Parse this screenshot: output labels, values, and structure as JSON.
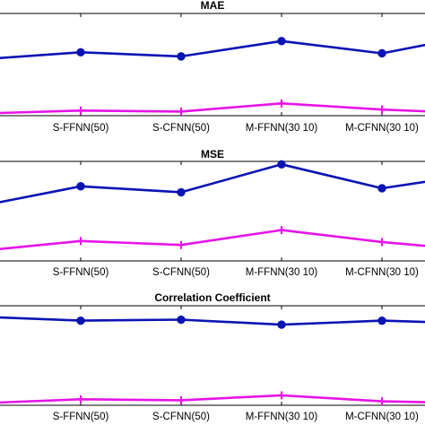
{
  "chart_data": [
    {
      "type": "line",
      "title": "MAE",
      "categories": [
        "",
        "S-FFNN(50)",
        "S-CFNN(50)",
        "M-FFNN(30 10)",
        "M-CFNN(30 10)",
        ""
      ],
      "ylim": [
        0,
        1
      ],
      "series": [
        {
          "color": "#0a14b4",
          "marker": "circle",
          "values": [
            0.55,
            0.62,
            0.58,
            0.73,
            0.61,
            0.8
          ]
        },
        {
          "color": "#e614e6",
          "marker": "plus",
          "values": [
            0.02,
            0.05,
            0.04,
            0.12,
            0.06,
            0.02
          ]
        }
      ]
    },
    {
      "type": "line",
      "title": "MSE",
      "categories": [
        "",
        "S-FFNN(50)",
        "S-CFNN(50)",
        "M-FFNN(30 10)",
        "M-CFNN(30 10)",
        ""
      ],
      "ylim": [
        0,
        1
      ],
      "series": [
        {
          "color": "#0a14b4",
          "marker": "circle",
          "values": [
            0.55,
            0.75,
            0.69,
            0.97,
            0.73,
            0.88
          ]
        },
        {
          "color": "#e614e6",
          "marker": "plus",
          "values": [
            0.1,
            0.2,
            0.16,
            0.31,
            0.19,
            0.1
          ]
        }
      ]
    },
    {
      "type": "line",
      "title": "Correlation Coefficient",
      "categories": [
        "",
        "S-FFNN(50)",
        "S-CFNN(50)",
        "M-FFNN(30 10)",
        "M-CFNN(30 10)",
        ""
      ],
      "ylim": [
        0,
        1
      ],
      "series": [
        {
          "color": "#0a14b4",
          "marker": "circle",
          "values": [
            0.89,
            0.85,
            0.86,
            0.81,
            0.85,
            0.82
          ]
        },
        {
          "color": "#e614e6",
          "marker": "plus",
          "values": [
            0.02,
            0.06,
            0.05,
            0.1,
            0.04,
            0.02
          ]
        }
      ]
    }
  ]
}
